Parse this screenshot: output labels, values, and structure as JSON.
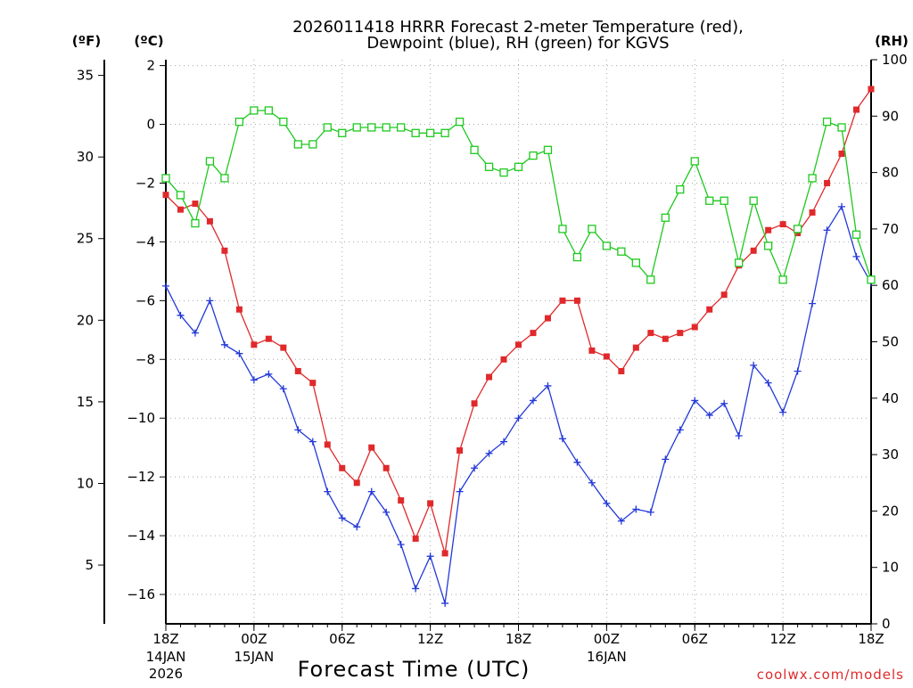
{
  "chart_data": {
    "type": "line",
    "title_line1": "2026011418 HRRR Forecast 2-meter Temperature (red),",
    "title_line2": "Dewpoint (blue), RH (green) for KGVS",
    "xlabel": "Forecast Time (UTC)",
    "credit": "coolwx.com/models",
    "unit_labels": {
      "fahrenheit": "(ºF)",
      "celsius": "(ºC)",
      "rh": "(RH)"
    },
    "x_hours": [
      0,
      1,
      2,
      3,
      4,
      5,
      6,
      7,
      8,
      9,
      10,
      11,
      12,
      13,
      14,
      15,
      16,
      17,
      18,
      19,
      20,
      21,
      22,
      23,
      24,
      25,
      26,
      27,
      28,
      29,
      30,
      31,
      32,
      33,
      34,
      35,
      36,
      37,
      38,
      39,
      40,
      41,
      42,
      43,
      44,
      45,
      46,
      47,
      48
    ],
    "xlim": [
      0,
      48
    ],
    "x_ticks": [
      {
        "hour": 0,
        "label": "18Z",
        "day": "14JAN",
        "year": "2026"
      },
      {
        "hour": 6,
        "label": "00Z",
        "day": "15JAN",
        "year": ""
      },
      {
        "hour": 12,
        "label": "06Z",
        "day": "",
        "year": ""
      },
      {
        "hour": 18,
        "label": "12Z",
        "day": "",
        "year": ""
      },
      {
        "hour": 24,
        "label": "18Z",
        "day": "",
        "year": ""
      },
      {
        "hour": 30,
        "label": "00Z",
        "day": "16JAN",
        "year": ""
      },
      {
        "hour": 36,
        "label": "06Z",
        "day": "",
        "year": ""
      },
      {
        "hour": 42,
        "label": "12Z",
        "day": "",
        "year": ""
      },
      {
        "hour": 48,
        "label": "18Z",
        "day": "",
        "year": ""
      }
    ],
    "y_celsius": {
      "ylim": [
        -17,
        2.2
      ],
      "ticks": [
        "2",
        "0",
        "−2",
        "−4",
        "−6",
        "−8",
        "−10",
        "−12",
        "−14",
        "−16"
      ]
    },
    "y_fahrenheit": {
      "ticks": [
        "35",
        "30",
        "25",
        "20",
        "15",
        "10",
        "5"
      ],
      "ylim": [
        1.4,
        35.96
      ]
    },
    "y_rh": {
      "ylim": [
        0,
        100
      ],
      "ticks": [
        "0",
        "10",
        "20",
        "30",
        "40",
        "50",
        "60",
        "70",
        "80",
        "90",
        "100"
      ]
    },
    "grid": true,
    "series": [
      {
        "name": "Temperature",
        "axis": "celsius",
        "color": "#e0292b",
        "marker": "square-filled",
        "values": [
          -2.4,
          -2.9,
          -2.7,
          -3.3,
          -4.3,
          -6.3,
          -7.5,
          -7.3,
          -7.6,
          -8.4,
          -8.8,
          -10.9,
          -11.7,
          -12.2,
          -11.0,
          -11.7,
          -12.8,
          -14.1,
          -12.9,
          -14.6,
          -11.1,
          -9.5,
          -8.6,
          -8.0,
          -7.5,
          -7.1,
          -6.6,
          -6.0,
          -6.0,
          -7.7,
          -7.9,
          -8.4,
          -7.6,
          -7.1,
          -7.3,
          -7.1,
          -6.9,
          -6.3,
          -5.8,
          -4.8,
          -4.3,
          -3.6,
          -3.4,
          -3.7,
          -3.0,
          -2.0,
          -1.0,
          0.5,
          1.2
        ]
      },
      {
        "name": "Dewpoint",
        "axis": "celsius",
        "color": "#2339d8",
        "marker": "plus",
        "values": [
          -5.5,
          -6.5,
          -7.1,
          -6.0,
          -7.5,
          -7.8,
          -8.7,
          -8.5,
          -9.0,
          -10.4,
          -10.8,
          -12.5,
          -13.4,
          -13.7,
          -12.5,
          -13.2,
          -14.3,
          -15.8,
          -14.7,
          -16.3,
          -12.5,
          -11.7,
          -11.2,
          -10.8,
          -10.0,
          -9.4,
          -8.9,
          -10.7,
          -11.5,
          -12.2,
          -12.9,
          -13.5,
          -13.1,
          -13.2,
          -11.4,
          -10.4,
          -9.4,
          -9.9,
          -9.5,
          -10.6,
          -8.2,
          -8.8,
          -9.8,
          -8.4,
          -6.1,
          -3.6,
          -2.8,
          -4.5,
          -5.4
        ]
      },
      {
        "name": "RH",
        "axis": "rh",
        "color": "#1ec91e",
        "marker": "square-open",
        "values": [
          79,
          76,
          71,
          82,
          79,
          89,
          91,
          91,
          89,
          85,
          85,
          88,
          87,
          88,
          88,
          88,
          88,
          87,
          87,
          87,
          89,
          84,
          81,
          80,
          81,
          83,
          84,
          70,
          65,
          70,
          67,
          66,
          64,
          61,
          72,
          77,
          82,
          75,
          75,
          64,
          75,
          67,
          61,
          70,
          79,
          89,
          88,
          69,
          61
        ]
      }
    ]
  }
}
